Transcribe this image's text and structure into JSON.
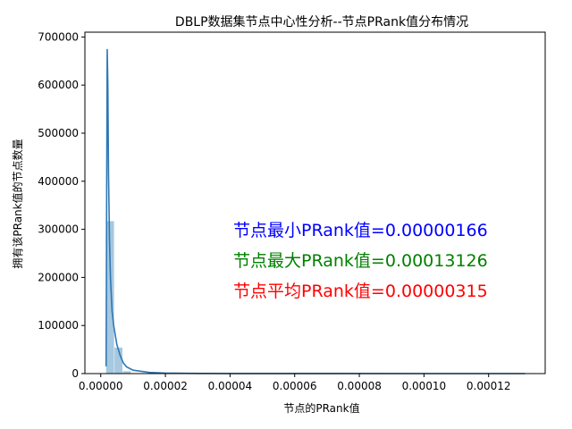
{
  "chart_data": {
    "type": "bar",
    "title": "DBLP数据集节点中心性分析--节点PRank值分布情况",
    "xlabel": "节点的PRank值",
    "ylabel": "拥有该PRank值的节点数量",
    "xlim": [
      -4.9e-06,
      2e-07
    ],
    "xlim_note": "",
    "x_range": [
      -4.9e-06,
      0.0001375
    ],
    "ylim": [
      0,
      710000
    ],
    "x_ticks": [
      0.0,
      2e-05,
      4e-05,
      6e-05,
      8e-05,
      0.0001,
      0.00012
    ],
    "x_tick_labels": [
      "0.00000",
      "0.00002",
      "0.00004",
      "0.00006",
      "0.00008",
      "0.00010",
      "0.00012"
    ],
    "y_ticks": [
      0,
      100000,
      200000,
      300000,
      400000,
      500000,
      600000,
      700000
    ],
    "y_tick_labels": [
      "0",
      "100000",
      "200000",
      "300000",
      "400000",
      "500000",
      "600000",
      "700000"
    ],
    "histogram": {
      "bin_edges": [
        1.66e-06,
        4.25e-06,
        6.84e-06,
        9.43e-06
      ],
      "counts": [
        317000,
        54000,
        5000
      ],
      "color": "#a6c8e0"
    },
    "kde": {
      "color": "#2e78b5",
      "x": [
        1.66e-06,
        1.8e-06,
        2e-06,
        2.2e-06,
        2.4e-06,
        2.7e-06,
        3e-06,
        3.5e-06,
        4e-06,
        5e-06,
        6e-06,
        7e-06,
        8e-06,
        1e-05,
        1.5e-05,
        2e-05,
        3e-05,
        5e-05,
        0.0001,
        0.00013126
      ],
      "y": [
        15000,
        300000,
        675000,
        600000,
        420000,
        280000,
        200000,
        130000,
        100000,
        60000,
        38000,
        22000,
        14000,
        7000,
        2500,
        1000,
        300,
        60,
        5,
        0
      ]
    },
    "annotations": [
      {
        "text": "节点最小PRank值=0.00000166",
        "color": "#0000ff"
      },
      {
        "text": "节点最大PRank值=0.00013126",
        "color": "#008000"
      },
      {
        "text": "节点平均PRank值=0.00000315",
        "color": "#ff0000"
      }
    ]
  }
}
